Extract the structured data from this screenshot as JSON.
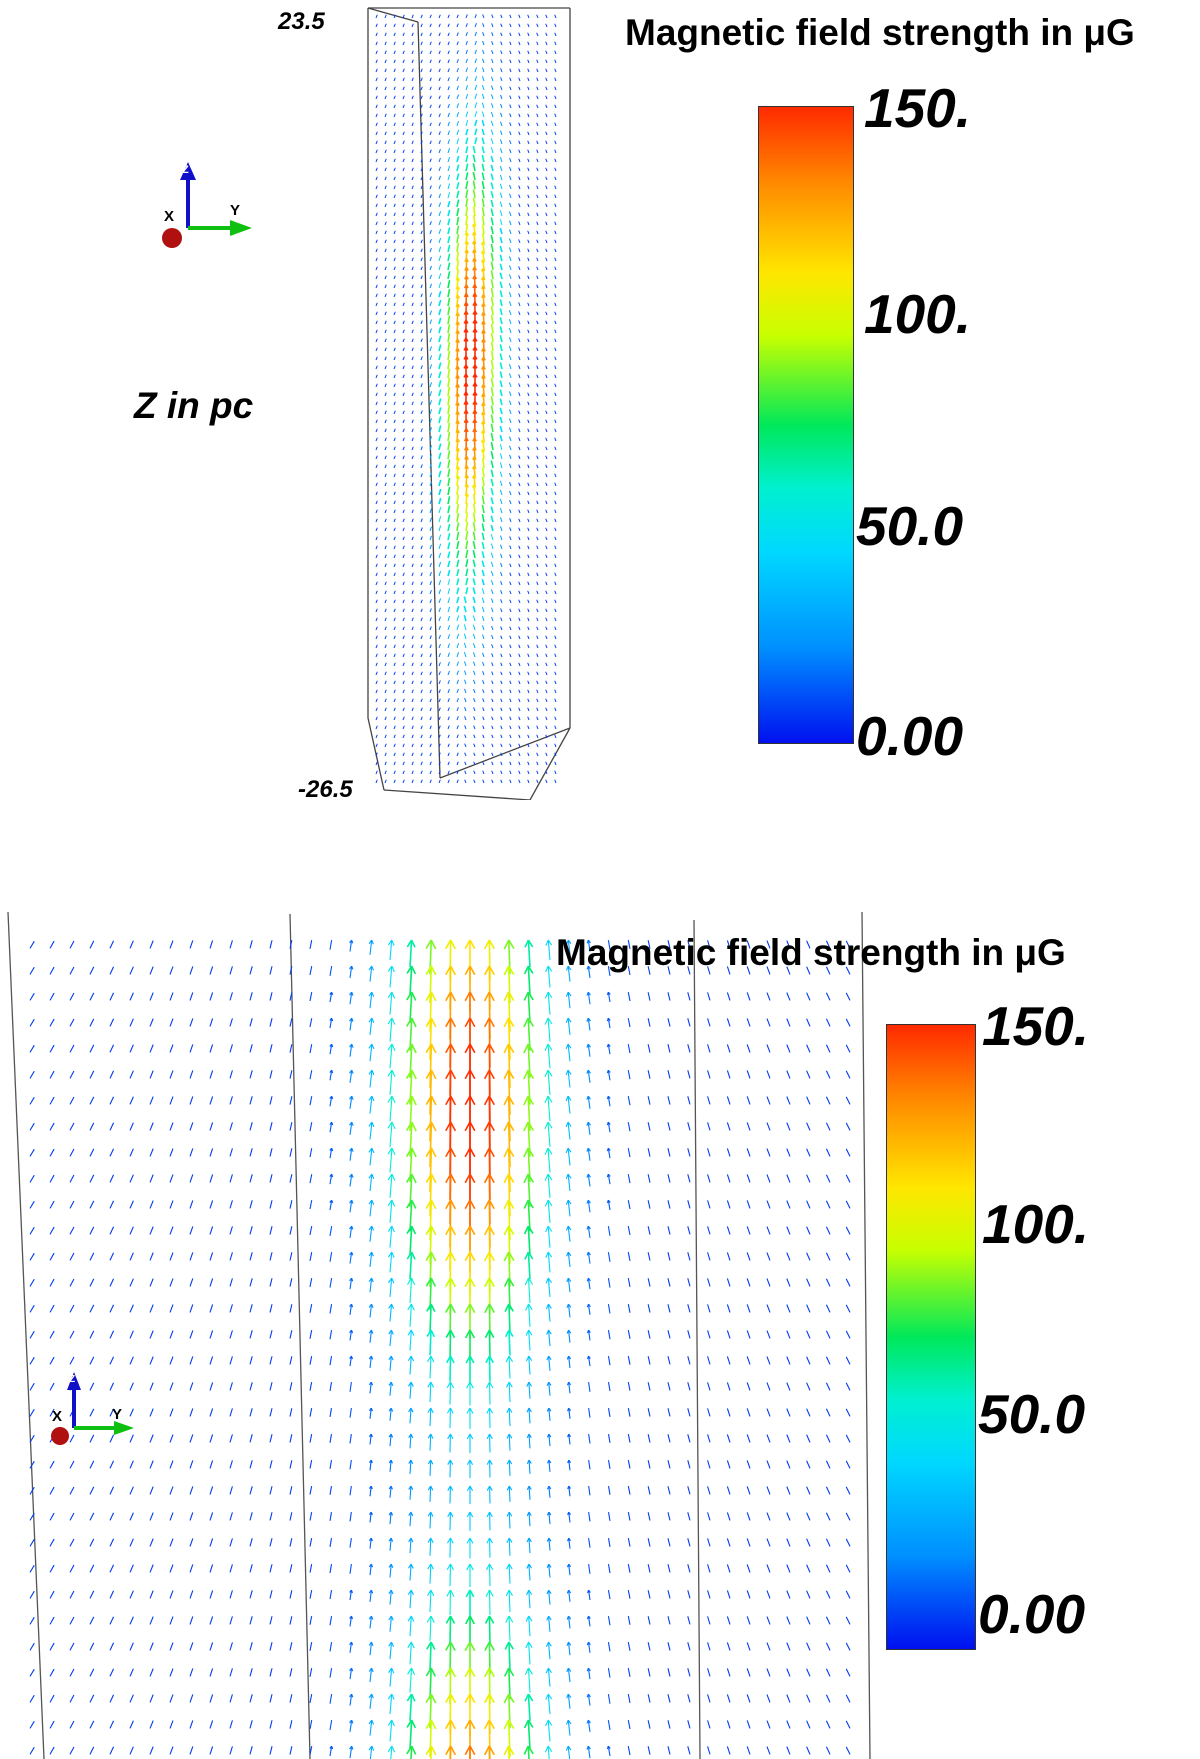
{
  "top_panel": {
    "z_top": "23.5",
    "z_bottom": "-26.5",
    "z_axis_label": "Z in pc",
    "colorbar": {
      "title": "Magnetic field strength in μG",
      "ticks": [
        "150.",
        "100.",
        "50.0",
        "0.00"
      ]
    },
    "orientation_axes": [
      "X",
      "Y",
      "Z"
    ]
  },
  "bottom_panel": {
    "colorbar": {
      "title": "Magnetic field strength in μG",
      "ticks": [
        "150.",
        "100.",
        "50.0",
        "0.00"
      ]
    },
    "orientation_axes": [
      "X",
      "Y",
      "Z"
    ]
  },
  "colors": {
    "max": "#ff2a00",
    "high": "#ffe600",
    "mid": "#00e85a",
    "low": "#00f0d0",
    "min": "#0010f0"
  }
}
